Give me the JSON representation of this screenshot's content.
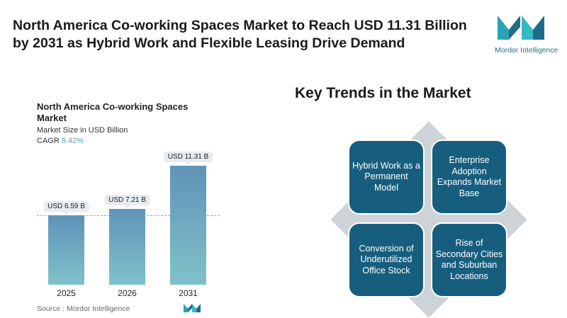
{
  "header": {
    "title": "North America Co-working Spaces Market to Reach USD 11.31 Billion by 2031 as Hybrid Work and Flexible Leasing Drive Demand",
    "logo_text": "Mordor Intelligence"
  },
  "chart_data": {
    "type": "bar",
    "title": "North America Co-working Spaces Market",
    "subtitle": "Market Size in USD Billion",
    "cagr_label": "CAGR",
    "cagr_value": "9.42%",
    "categories": [
      "2025",
      "2026",
      "2031"
    ],
    "values": [
      6.59,
      7.21,
      11.31
    ],
    "data_labels": [
      "USD 6.59 B",
      "USD 7.21 B",
      "USD 11.31 B"
    ],
    "reference_line": "dashed at 2025 value",
    "colors": {
      "bar_top": "#5f93b8",
      "bar_bottom": "#80c2c9"
    }
  },
  "source": "Source :  Mordor Intelligence",
  "trends": {
    "title": "Key Trends in the Market",
    "items": [
      "Hybrid Work as a Permanent Model",
      "Enterprise Adoption Expands Market Base",
      "Conversion of Underutilized Office Stock",
      "Rise of Secondary Cities and Suburban Locations"
    ],
    "box_color": "#175e7e"
  }
}
